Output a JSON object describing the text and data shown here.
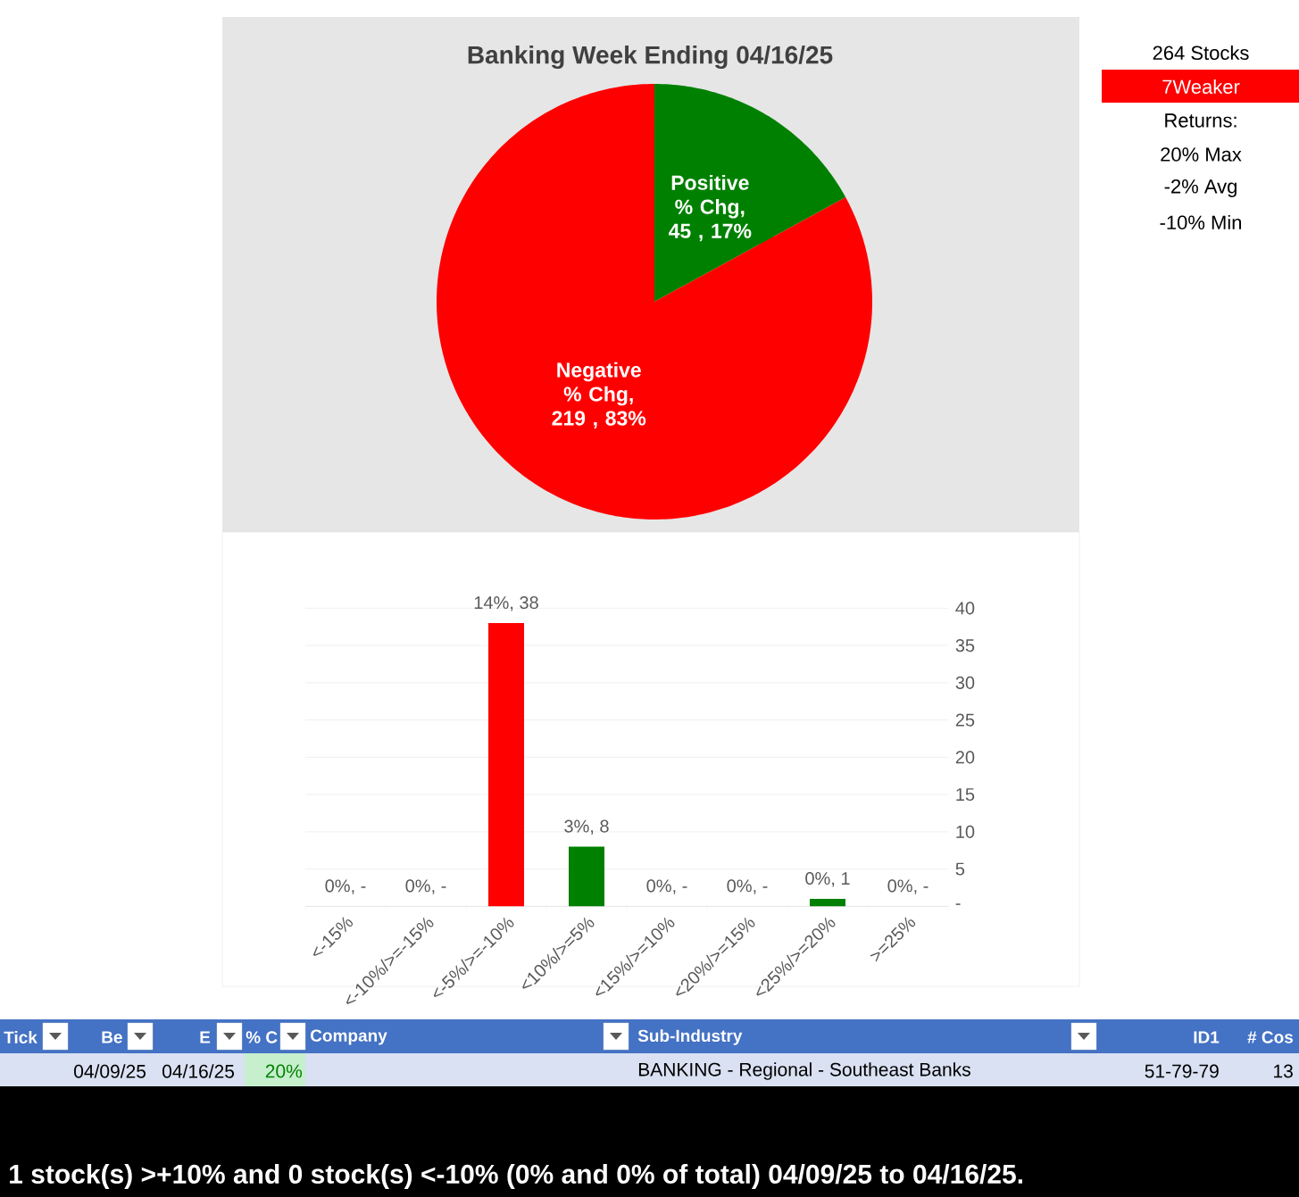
{
  "chart_data": [
    {
      "type": "pie",
      "title": "Banking Week Ending 04/16/25",
      "categories": [
        "Positive % Chg",
        "Negative % Chg"
      ],
      "values": [
        45,
        219
      ],
      "colors": [
        "#008000",
        "#ff0000"
      ],
      "value_labels": [
        ",  45 , 17%",
        ",  219 , 83%"
      ]
    },
    {
      "type": "bar",
      "categories": [
        "<-15%",
        "<-10%/>=-15%",
        "<-5%/>=-10%",
        "<10%/>=5%",
        "<15%/>=10%",
        "<20%/>=15%",
        "<25%/>=20%",
        ">=25%"
      ],
      "values": [
        0,
        0,
        38,
        8,
        0,
        0,
        1,
        0
      ],
      "colors": [
        "#ff0000",
        "#ff0000",
        "#ff0000",
        "#008000",
        "#008000",
        "#008000",
        "#008000",
        "#008000"
      ],
      "value_labels": [
        "0%,  -",
        "0%,  -",
        "14%,  38",
        "3%,  8",
        "0%,  -",
        "0%,  -",
        "0%,  1",
        "0%,  -"
      ],
      "ylim": [
        0,
        40
      ],
      "yticks": [
        {
          "value": 0,
          "label": "-"
        },
        5,
        10,
        15,
        20,
        25,
        30,
        35,
        40
      ],
      "grid": "y"
    },
    {
      "type": "other",
      "annotations": [
        "264 Stocks",
        "7Weaker",
        "Returns:",
        "20% Max",
        "-2% Avg",
        "-10% Min",
        "Tick",
        "Be",
        "E",
        "% C",
        "Company",
        "Sub-Industry",
        "ID1",
        "# Cos",
        "04/09/25",
        "04/16/25",
        "20%",
        "BANKING - Regional - Southeast Banks",
        "51-79-79",
        "13",
        "1 stock(s) >+10% and 0 stock(s) <-10% (0% and 0% of total) 04/09/25 to 04/16/25."
      ]
    }
  ]
}
